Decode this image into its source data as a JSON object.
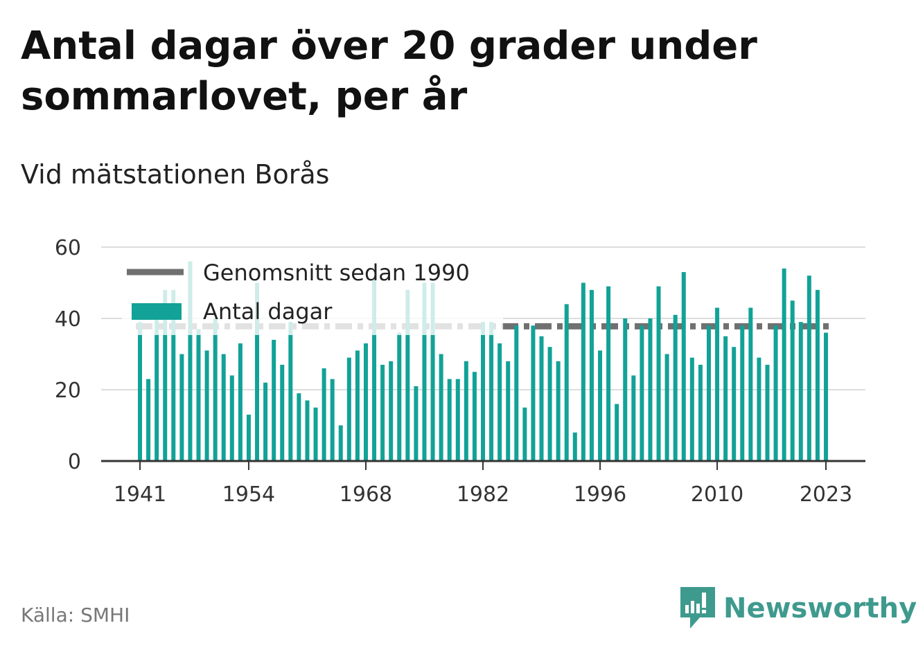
{
  "title": "Antal dagar över 20 grader under sommarlovet, per år",
  "subtitle": "Vid mätstationen Borås",
  "source": "Källa: SMHI",
  "brand": "Newsworthy",
  "colors": {
    "bar": "#12a297",
    "average": "#707070",
    "grid": "#dddddd",
    "axis": "#333333"
  },
  "chart_data": {
    "type": "bar",
    "x": [
      1941,
      1942,
      1943,
      1944,
      1945,
      1946,
      1947,
      1948,
      1949,
      1950,
      1951,
      1952,
      1953,
      1954,
      1955,
      1956,
      1957,
      1958,
      1959,
      1960,
      1961,
      1962,
      1963,
      1964,
      1965,
      1966,
      1967,
      1968,
      1969,
      1970,
      1971,
      1972,
      1973,
      1974,
      1975,
      1976,
      1977,
      1978,
      1979,
      1980,
      1981,
      1982,
      1983,
      1984,
      1985,
      1986,
      1987,
      1988,
      1989,
      1990,
      1991,
      1992,
      1993,
      1994,
      1995,
      1996,
      1997,
      1998,
      1999,
      2000,
      2001,
      2002,
      2003,
      2004,
      2005,
      2006,
      2007,
      2008,
      2009,
      2010,
      2011,
      2012,
      2013,
      2014,
      2015,
      2016,
      2017,
      2018,
      2019,
      2020,
      2021,
      2022,
      2023
    ],
    "series": [
      {
        "name": "Antal dagar",
        "values": [
          39,
          23,
          44,
          48,
          48,
          30,
          56,
          37,
          31,
          40,
          30,
          24,
          33,
          13,
          50,
          22,
          34,
          27,
          39,
          19,
          17,
          15,
          26,
          23,
          10,
          29,
          31,
          33,
          51,
          27,
          28,
          36,
          48,
          21,
          50,
          50,
          30,
          23,
          23,
          28,
          25,
          39,
          39,
          33,
          28,
          38,
          15,
          38,
          35,
          32,
          28,
          44,
          8,
          50,
          48,
          31,
          49,
          16,
          40,
          24,
          38,
          40,
          49,
          30,
          41,
          53,
          29,
          27,
          38,
          43,
          35,
          32,
          38,
          43,
          29,
          27,
          38,
          54,
          45,
          39,
          52,
          48,
          36
        ]
      },
      {
        "name": "Genomsnitt sedan 1990",
        "value": 37.8
      }
    ],
    "xticks": [
      "1941",
      "1954",
      "1968",
      "1982",
      "1996",
      "2010",
      "2023"
    ],
    "yticks": [
      "0",
      "20",
      "40",
      "60"
    ],
    "ylim": [
      0,
      60
    ],
    "grid": true,
    "legend_position": "top-left"
  }
}
